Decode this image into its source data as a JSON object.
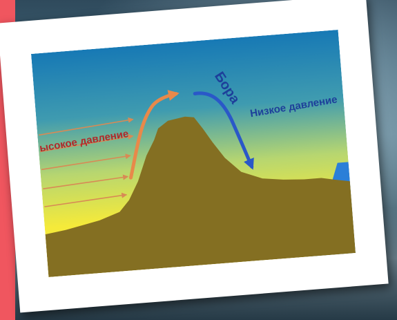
{
  "diagram": {
    "label_high_pressure": "ысокое давление",
    "label_bora": "Бора",
    "label_low_pressure": "Низкое давление"
  },
  "colors": {
    "accent_bar": "#f0565f",
    "sky_top": "#1779b5",
    "sky_bottom": "#f5ea3a",
    "mountain": "#846f22",
    "sea": "#2b7fd8",
    "orange_arrow": "#e8894a",
    "blue_arrow": "#2a58c8",
    "high_pressure_text": "#b0282a",
    "low_pressure_text": "#1d3f9a",
    "bora_text": "#1d3f9a"
  },
  "icons": {
    "wind_arrows": "thin-right-arrow",
    "upslope_arrow": "curved-arrow-up-right",
    "bora_arrow": "curved-arrow-down-right"
  }
}
